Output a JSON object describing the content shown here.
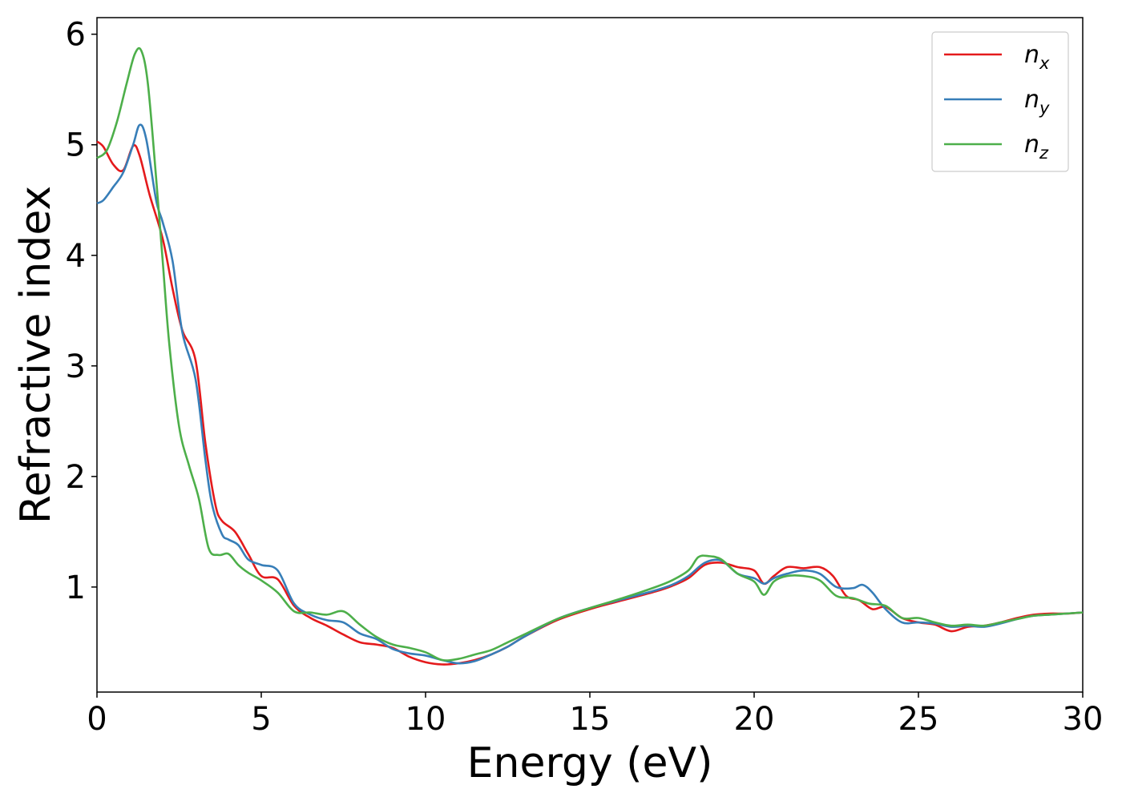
{
  "chart_data": {
    "type": "line",
    "xlabel": "Energy (eV)",
    "ylabel": "Refractive index",
    "xlim": [
      0,
      30
    ],
    "ylim": [
      0.05,
      6.15
    ],
    "xticks": [
      0,
      5,
      10,
      15,
      20,
      25,
      30
    ],
    "yticks": [
      1,
      2,
      3,
      4,
      5,
      6
    ],
    "grid": false,
    "legend_position": "top-right",
    "series": [
      {
        "name": "n_x",
        "label_base": "n",
        "label_sub": "x",
        "color": "#e41a1c",
        "x": [
          0,
          0.2,
          0.5,
          0.8,
          1.1,
          1.3,
          1.6,
          2.0,
          2.3,
          2.6,
          3.0,
          3.3,
          3.6,
          3.8,
          4.2,
          4.6,
          5.0,
          5.5,
          6.0,
          6.5,
          7.0,
          7.5,
          8.0,
          8.5,
          9.0,
          9.5,
          10.0,
          10.5,
          11.0,
          11.5,
          12.0,
          12.5,
          13.0,
          14.0,
          15.0,
          16.0,
          17.0,
          17.5,
          18.0,
          18.5,
          19.0,
          19.5,
          20.0,
          20.3,
          20.6,
          21.0,
          21.5,
          22.0,
          22.4,
          22.8,
          23.2,
          23.6,
          24.0,
          24.5,
          25.0,
          25.5,
          26.0,
          26.5,
          27.0,
          27.5,
          28.0,
          28.5,
          29.0,
          29.5,
          30.0
        ],
        "y": [
          5.03,
          4.98,
          4.82,
          4.77,
          4.99,
          4.9,
          4.55,
          4.15,
          3.7,
          3.32,
          3.05,
          2.3,
          1.75,
          1.6,
          1.5,
          1.3,
          1.1,
          1.07,
          0.83,
          0.72,
          0.65,
          0.57,
          0.5,
          0.48,
          0.45,
          0.37,
          0.32,
          0.3,
          0.31,
          0.34,
          0.39,
          0.46,
          0.55,
          0.7,
          0.8,
          0.88,
          0.96,
          1.01,
          1.08,
          1.2,
          1.22,
          1.18,
          1.15,
          1.03,
          1.1,
          1.18,
          1.17,
          1.18,
          1.1,
          0.92,
          0.88,
          0.8,
          0.82,
          0.72,
          0.68,
          0.66,
          0.6,
          0.64,
          0.65,
          0.68,
          0.72,
          0.75,
          0.76,
          0.76,
          0.77
        ]
      },
      {
        "name": "n_y",
        "label_base": "n",
        "label_sub": "y",
        "color": "#377eb8",
        "x": [
          0,
          0.2,
          0.5,
          0.8,
          1.1,
          1.3,
          1.5,
          1.8,
          2.0,
          2.3,
          2.6,
          3.0,
          3.3,
          3.5,
          3.8,
          4.0,
          4.3,
          4.6,
          5.0,
          5.5,
          6.0,
          6.5,
          7.0,
          7.5,
          8.0,
          8.5,
          9.0,
          9.5,
          10.0,
          10.5,
          11.0,
          11.5,
          12.0,
          12.5,
          13.0,
          14.0,
          15.0,
          16.0,
          17.0,
          17.5,
          18.0,
          18.5,
          19.0,
          19.5,
          20.0,
          20.3,
          20.6,
          21.0,
          21.5,
          22.0,
          22.5,
          23.0,
          23.3,
          23.6,
          24.0,
          24.5,
          25.0,
          25.5,
          26.0,
          26.5,
          27.0,
          27.5,
          28.0,
          28.5,
          29.0,
          29.5,
          30.0
        ],
        "y": [
          4.47,
          4.5,
          4.62,
          4.75,
          5.0,
          5.18,
          5.05,
          4.5,
          4.3,
          3.95,
          3.3,
          2.88,
          2.15,
          1.75,
          1.48,
          1.43,
          1.38,
          1.25,
          1.2,
          1.15,
          0.85,
          0.75,
          0.7,
          0.68,
          0.58,
          0.53,
          0.44,
          0.4,
          0.38,
          0.34,
          0.31,
          0.33,
          0.39,
          0.46,
          0.55,
          0.71,
          0.81,
          0.89,
          0.97,
          1.02,
          1.1,
          1.22,
          1.24,
          1.12,
          1.08,
          1.03,
          1.08,
          1.12,
          1.15,
          1.12,
          1.0,
          0.99,
          1.02,
          0.95,
          0.8,
          0.68,
          0.68,
          0.67,
          0.64,
          0.65,
          0.64,
          0.67,
          0.71,
          0.74,
          0.75,
          0.76,
          0.77
        ]
      },
      {
        "name": "n_z",
        "label_base": "n",
        "label_sub": "z",
        "color": "#4daf4a",
        "x": [
          0,
          0.3,
          0.6,
          0.9,
          1.15,
          1.35,
          1.55,
          1.8,
          2.0,
          2.2,
          2.5,
          2.8,
          3.1,
          3.4,
          3.7,
          4.0,
          4.3,
          4.6,
          5.0,
          5.5,
          6.0,
          6.5,
          7.0,
          7.5,
          8.0,
          8.5,
          9.0,
          9.5,
          10.0,
          10.5,
          11.0,
          11.5,
          12.0,
          12.5,
          13.0,
          14.0,
          15.0,
          16.0,
          17.0,
          17.5,
          18.0,
          18.3,
          18.6,
          19.0,
          19.5,
          20.0,
          20.3,
          20.6,
          21.0,
          21.5,
          22.0,
          22.5,
          23.0,
          23.5,
          24.0,
          24.5,
          25.0,
          25.5,
          26.0,
          26.5,
          27.0,
          27.5,
          28.0,
          28.5,
          29.0,
          29.5,
          30.0
        ],
        "y": [
          4.88,
          4.95,
          5.2,
          5.55,
          5.82,
          5.85,
          5.55,
          4.7,
          3.95,
          3.2,
          2.45,
          2.1,
          1.8,
          1.35,
          1.29,
          1.3,
          1.2,
          1.13,
          1.06,
          0.95,
          0.78,
          0.77,
          0.75,
          0.78,
          0.66,
          0.55,
          0.48,
          0.45,
          0.41,
          0.34,
          0.35,
          0.39,
          0.43,
          0.5,
          0.57,
          0.71,
          0.81,
          0.9,
          1.0,
          1.06,
          1.15,
          1.27,
          1.28,
          1.25,
          1.12,
          1.05,
          0.93,
          1.05,
          1.1,
          1.1,
          1.06,
          0.92,
          0.9,
          0.85,
          0.83,
          0.72,
          0.72,
          0.68,
          0.65,
          0.66,
          0.65,
          0.68,
          0.71,
          0.74,
          0.75,
          0.76,
          0.77
        ]
      }
    ]
  }
}
